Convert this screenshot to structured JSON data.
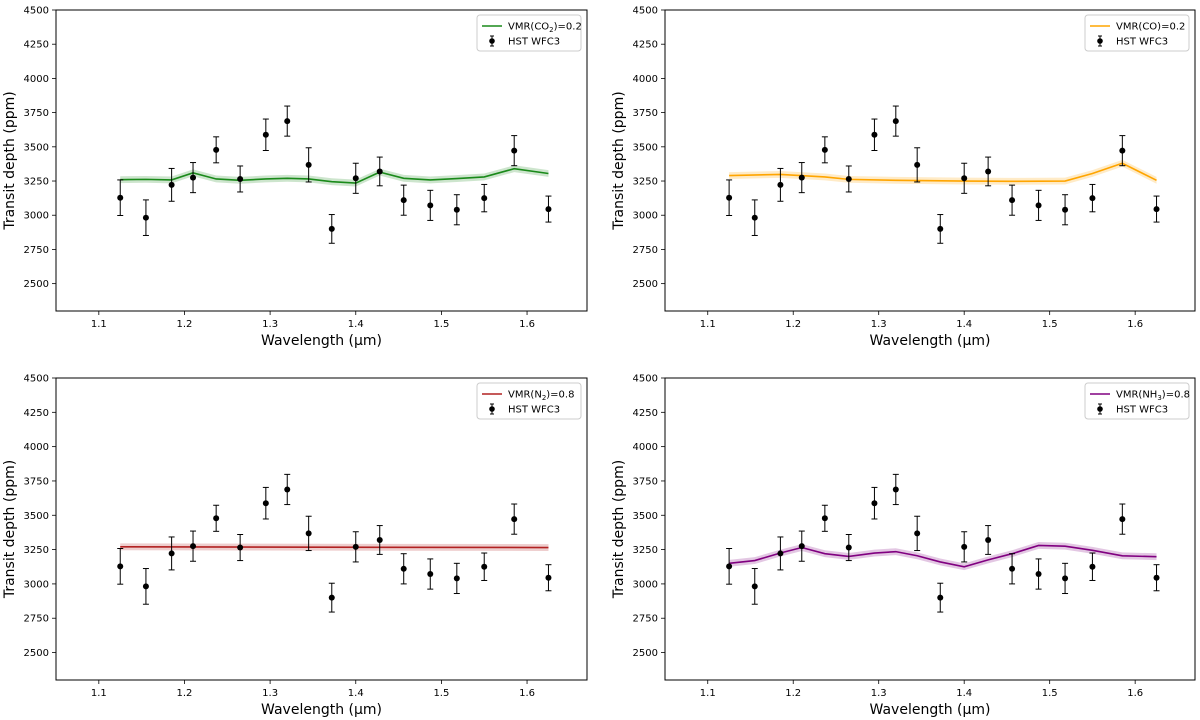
{
  "chart_data": [
    {
      "type": "line",
      "panel": "top-left",
      "title": "",
      "xlabel": "Wavelength (μm)",
      "ylabel": "Transit depth (ppm)",
      "xlim": [
        1.05,
        1.67
      ],
      "ylim": [
        2300,
        4500
      ],
      "xticks": [
        "1.1",
        "1.2",
        "1.3",
        "1.4",
        "1.5",
        "1.6"
      ],
      "yticks": [
        "2500",
        "2750",
        "3000",
        "3250",
        "3500",
        "3750",
        "4000",
        "4250",
        "4500"
      ],
      "legend_position": "top-right",
      "model": {
        "name_main": "VMR(CO",
        "name_sub": "2",
        "name_end": ")=0.2",
        "color": "#1a8a1a",
        "x": [
          1.125,
          1.155,
          1.185,
          1.21,
          1.237,
          1.265,
          1.295,
          1.32,
          1.345,
          1.372,
          1.4,
          1.428,
          1.456,
          1.487,
          1.518,
          1.55,
          1.585,
          1.625
        ],
        "y": [
          3260,
          3262,
          3258,
          3310,
          3265,
          3255,
          3265,
          3270,
          3265,
          3245,
          3235,
          3315,
          3270,
          3258,
          3268,
          3280,
          3340,
          3305
        ],
        "band_halfwidth": 25
      },
      "observations": {
        "name": "HST WFC3",
        "color": "#000000",
        "x": [
          1.125,
          1.155,
          1.185,
          1.21,
          1.237,
          1.265,
          1.295,
          1.32,
          1.345,
          1.372,
          1.4,
          1.428,
          1.456,
          1.487,
          1.518,
          1.55,
          1.585,
          1.625
        ],
        "y": [
          3128,
          2982,
          3222,
          3275,
          3478,
          3265,
          3588,
          3688,
          3368,
          2900,
          3270,
          3320,
          3110,
          3072,
          3040,
          3125,
          3472,
          3045
        ],
        "yerr": [
          130,
          130,
          120,
          110,
          95,
          95,
          115,
          110,
          125,
          105,
          110,
          105,
          110,
          110,
          110,
          100,
          110,
          95
        ]
      }
    },
    {
      "type": "line",
      "panel": "top-right",
      "title": "",
      "xlabel": "Wavelength (μm)",
      "ylabel": "Transit depth (ppm)",
      "xlim": [
        1.05,
        1.67
      ],
      "ylim": [
        2300,
        4500
      ],
      "xticks": [
        "1.1",
        "1.2",
        "1.3",
        "1.4",
        "1.5",
        "1.6"
      ],
      "yticks": [
        "2500",
        "2750",
        "3000",
        "3250",
        "3500",
        "3750",
        "4000",
        "4250",
        "4500"
      ],
      "legend_position": "top-right",
      "model": {
        "name_main": "VMR(CO)=0.2",
        "name_sub": "",
        "name_end": "",
        "color": "#ffa500",
        "x": [
          1.125,
          1.185,
          1.237,
          1.265,
          1.32,
          1.4,
          1.456,
          1.518,
          1.55,
          1.585,
          1.625
        ],
        "y": [
          3290,
          3298,
          3280,
          3262,
          3255,
          3250,
          3248,
          3250,
          3305,
          3380,
          3255
        ],
        "band_halfwidth": 25
      },
      "observations": {
        "name": "HST WFC3",
        "color": "#000000",
        "x": [
          1.125,
          1.155,
          1.185,
          1.21,
          1.237,
          1.265,
          1.295,
          1.32,
          1.345,
          1.372,
          1.4,
          1.428,
          1.456,
          1.487,
          1.518,
          1.55,
          1.585,
          1.625
        ],
        "y": [
          3128,
          2982,
          3222,
          3275,
          3478,
          3265,
          3588,
          3688,
          3368,
          2900,
          3270,
          3320,
          3110,
          3072,
          3040,
          3125,
          3472,
          3045
        ],
        "yerr": [
          130,
          130,
          120,
          110,
          95,
          95,
          115,
          110,
          125,
          105,
          110,
          105,
          110,
          110,
          110,
          100,
          110,
          95
        ]
      }
    },
    {
      "type": "line",
      "panel": "bottom-left",
      "title": "",
      "xlabel": "Wavelength (μm)",
      "ylabel": "Transit depth (ppm)",
      "xlim": [
        1.05,
        1.67
      ],
      "ylim": [
        2300,
        4500
      ],
      "xticks": [
        "1.1",
        "1.2",
        "1.3",
        "1.4",
        "1.5",
        "1.6"
      ],
      "yticks": [
        "2500",
        "2750",
        "3000",
        "3250",
        "3500",
        "3750",
        "4000",
        "4250",
        "4500"
      ],
      "legend_position": "top-right",
      "model": {
        "name_main": "VMR(N",
        "name_sub": "2",
        "name_end": ")=0.8",
        "color": "#b22222",
        "x": [
          1.125,
          1.625
        ],
        "y": [
          3270,
          3265
        ],
        "band_halfwidth": 25
      },
      "observations": {
        "name": "HST WFC3",
        "color": "#000000",
        "x": [
          1.125,
          1.155,
          1.185,
          1.21,
          1.237,
          1.265,
          1.295,
          1.32,
          1.345,
          1.372,
          1.4,
          1.428,
          1.456,
          1.487,
          1.518,
          1.55,
          1.585,
          1.625
        ],
        "y": [
          3128,
          2982,
          3222,
          3275,
          3478,
          3265,
          3588,
          3688,
          3368,
          2900,
          3270,
          3320,
          3110,
          3072,
          3040,
          3125,
          3472,
          3045
        ],
        "yerr": [
          130,
          130,
          120,
          110,
          95,
          95,
          115,
          110,
          125,
          105,
          110,
          105,
          110,
          110,
          110,
          100,
          110,
          95
        ]
      }
    },
    {
      "type": "line",
      "panel": "bottom-right",
      "title": "",
      "xlabel": "Wavelength (μm)",
      "ylabel": "Transit depth (ppm)",
      "xlim": [
        1.05,
        1.67
      ],
      "ylim": [
        2300,
        4500
      ],
      "xticks": [
        "1.1",
        "1.2",
        "1.3",
        "1.4",
        "1.5",
        "1.6"
      ],
      "yticks": [
        "2500",
        "2750",
        "3000",
        "3250",
        "3500",
        "3750",
        "4000",
        "4250",
        "4500"
      ],
      "legend_position": "top-right",
      "model": {
        "name_main": "VMR(NH",
        "name_sub": "3",
        "name_end": ")=0.8",
        "color": "#800080",
        "x": [
          1.125,
          1.155,
          1.185,
          1.21,
          1.237,
          1.265,
          1.295,
          1.32,
          1.345,
          1.372,
          1.4,
          1.428,
          1.456,
          1.487,
          1.518,
          1.55,
          1.585,
          1.625
        ],
        "y": [
          3150,
          3170,
          3225,
          3265,
          3220,
          3200,
          3225,
          3235,
          3205,
          3160,
          3125,
          3175,
          3220,
          3280,
          3275,
          3245,
          3205,
          3198
        ],
        "band_halfwidth": 25
      },
      "observations": {
        "name": "HST WFC3",
        "color": "#000000",
        "x": [
          1.125,
          1.155,
          1.185,
          1.21,
          1.237,
          1.265,
          1.295,
          1.32,
          1.345,
          1.372,
          1.4,
          1.428,
          1.456,
          1.487,
          1.518,
          1.55,
          1.585,
          1.625
        ],
        "y": [
          3128,
          2982,
          3222,
          3275,
          3478,
          3265,
          3588,
          3688,
          3368,
          2900,
          3270,
          3320,
          3110,
          3072,
          3040,
          3125,
          3472,
          3045
        ],
        "yerr": [
          130,
          130,
          120,
          110,
          95,
          95,
          115,
          110,
          125,
          105,
          110,
          105,
          110,
          110,
          110,
          100,
          110,
          95
        ]
      }
    }
  ]
}
